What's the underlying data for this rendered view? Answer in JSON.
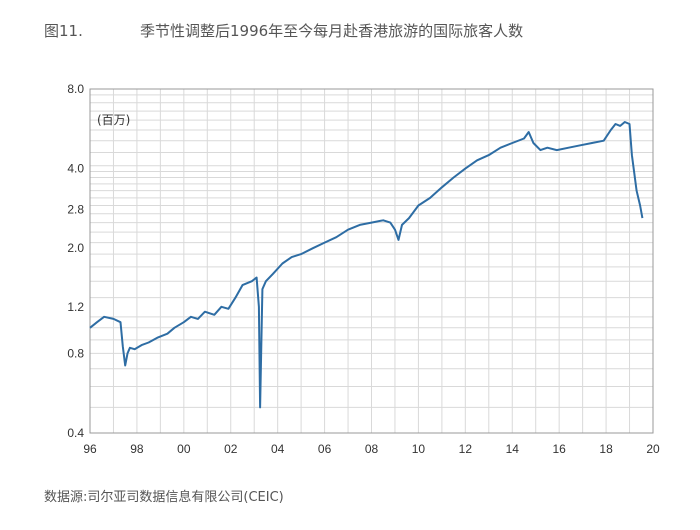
{
  "figure_label": "图11.",
  "title": "季节性调整后1996年至今每月赴香港旅游的国际旅客人数",
  "source": "数据源:司尔亚司数据信息有限公司(CEIC)",
  "colors": {
    "line": "#2e6da4",
    "grid": "#d9d9d9",
    "axis": "#999999"
  },
  "chart_data": {
    "type": "line",
    "title": "季节性调整后1996年至今每月赴香港旅游的国际旅客人数",
    "unit_label": "(百万)",
    "y_scale": "log",
    "ylim": [
      0.4,
      8.0
    ],
    "y_ticks": [
      0.4,
      0.8,
      1.2,
      2.0,
      2.8,
      4.0,
      8.0
    ],
    "y_tick_labels": [
      "0.4",
      "0.8",
      "1.2",
      "2.0",
      "2.8",
      "4.0",
      "8.0"
    ],
    "xlim": [
      1996,
      2020
    ],
    "x_ticks": [
      1996,
      1998,
      2000,
      2002,
      2004,
      2006,
      2008,
      2010,
      2012,
      2014,
      2016,
      2018,
      2020
    ],
    "x_tick_labels": [
      "96",
      "98",
      "00",
      "02",
      "04",
      "06",
      "08",
      "10",
      "12",
      "14",
      "16",
      "18",
      "20"
    ],
    "grid": true,
    "series": [
      {
        "x": [
          1996.0,
          1996.3,
          1996.6,
          1997.0,
          1997.3,
          1997.4,
          1997.5,
          1997.6,
          1997.7,
          1997.9,
          1998.2,
          1998.5,
          1998.9,
          1999.3,
          1999.6,
          2000.0,
          2000.3,
          2000.6,
          2000.9,
          2001.3,
          2001.6,
          2001.9,
          2002.2,
          2002.5,
          2002.9,
          2003.1,
          2003.2,
          2003.25,
          2003.35,
          2003.5,
          2003.8,
          2004.2,
          2004.6,
          2005.0,
          2005.5,
          2006.0,
          2006.5,
          2007.0,
          2007.5,
          2008.0,
          2008.5,
          2008.8,
          2009.0,
          2009.15,
          2009.3,
          2009.6,
          2010.0,
          2010.5,
          2011.0,
          2011.5,
          2012.0,
          2012.5,
          2013.0,
          2013.5,
          2014.0,
          2014.5,
          2014.7,
          2014.9,
          2015.2,
          2015.5,
          2015.9,
          2016.4,
          2016.9,
          2017.4,
          2017.9,
          2018.2,
          2018.4,
          2018.6,
          2018.8,
          2019.0,
          2019.1,
          2019.3,
          2019.45,
          2019.55
        ],
        "y": [
          1.0,
          1.05,
          1.1,
          1.08,
          1.05,
          0.85,
          0.72,
          0.8,
          0.84,
          0.83,
          0.86,
          0.88,
          0.92,
          0.95,
          1.0,
          1.05,
          1.1,
          1.08,
          1.15,
          1.12,
          1.2,
          1.18,
          1.3,
          1.45,
          1.5,
          1.55,
          1.2,
          0.5,
          1.4,
          1.5,
          1.6,
          1.75,
          1.85,
          1.9,
          2.0,
          2.1,
          2.2,
          2.35,
          2.45,
          2.5,
          2.55,
          2.5,
          2.35,
          2.15,
          2.45,
          2.6,
          2.9,
          3.1,
          3.4,
          3.7,
          4.0,
          4.3,
          4.5,
          4.8,
          5.0,
          5.2,
          5.5,
          5.0,
          4.7,
          4.8,
          4.7,
          4.8,
          4.9,
          5.0,
          5.1,
          5.6,
          5.9,
          5.8,
          6.0,
          5.9,
          4.5,
          3.3,
          2.9,
          2.6
        ]
      }
    ]
  }
}
